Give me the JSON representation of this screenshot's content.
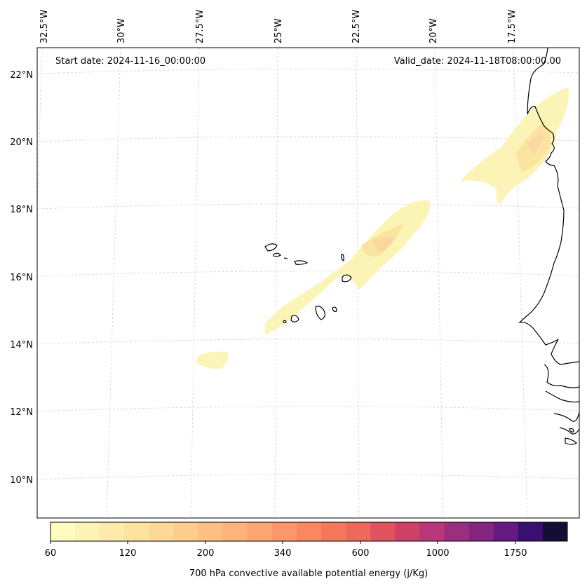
{
  "map": {
    "start_date_text": "Start date: 2024-11-16_00:00:00",
    "valid_date_text": "Valid_date: 2024-11-18T08:00:00.00",
    "lon_labels": [
      "32.5°W",
      "30°W",
      "27.5°W",
      "25°W",
      "22.5°W",
      "20°W",
      "17.5°W"
    ],
    "lat_labels": [
      "22°N",
      "20°N",
      "18°N",
      "16°N",
      "14°N",
      "12°N",
      "10°N"
    ],
    "gridlines": true,
    "coastline_color": "#000000",
    "field_colors": {
      "low": "#fcf4b6",
      "mid": "#fbe3a0",
      "high": "#f9d28c"
    }
  },
  "colorbar": {
    "label": "700 hPa convective available potential energy (j/Kg)",
    "tick_labels": [
      "60",
      "120",
      "200",
      "340",
      "600",
      "1000",
      "1750"
    ],
    "colors": [
      "#fcfdbf",
      "#fcf4b6",
      "#fdebab",
      "#fde2a0",
      "#fed896",
      "#fecd8c",
      "#febf84",
      "#feb27c",
      "#fea573",
      "#fd966b",
      "#fb8761",
      "#f6785c",
      "#ed6a5a",
      "#e0535f",
      "#cf4067",
      "#b73779",
      "#9c2e7f",
      "#822681",
      "#641a80",
      "#3b0f70",
      "#140e36"
    ]
  }
}
